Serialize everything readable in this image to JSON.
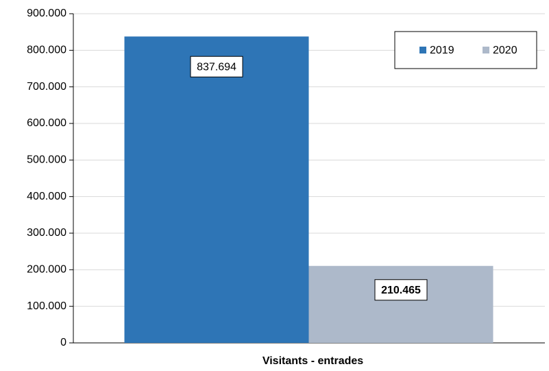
{
  "chart_data": {
    "type": "bar",
    "categories": [
      "Visitants - entrades"
    ],
    "series": [
      {
        "name": "2019",
        "color": "#2e75b6",
        "values": [
          837694
        ],
        "value_labels": [
          "837.694"
        ]
      },
      {
        "name": "2020",
        "color": "#adb9ca",
        "values": [
          210465
        ],
        "value_labels": [
          "210.465"
        ]
      }
    ],
    "ylim": [
      0,
      900000
    ],
    "yticks": [
      0,
      {
        "value": 100000,
        "label": "100.000"
      },
      {
        "value": 200000,
        "label": "200.000"
      },
      {
        "value": 300000,
        "label": "300.000"
      },
      {
        "value": 400000,
        "label": "400.000"
      },
      {
        "value": 500000,
        "label": "500.000"
      },
      {
        "value": 600000,
        "label": "600.000"
      },
      {
        "value": 700000,
        "label": "700.000"
      },
      {
        "value": 800000,
        "label": "800.000"
      },
      {
        "value": 900000,
        "label": "900.000"
      }
    ],
    "grid": true,
    "legend": "upper right"
  }
}
